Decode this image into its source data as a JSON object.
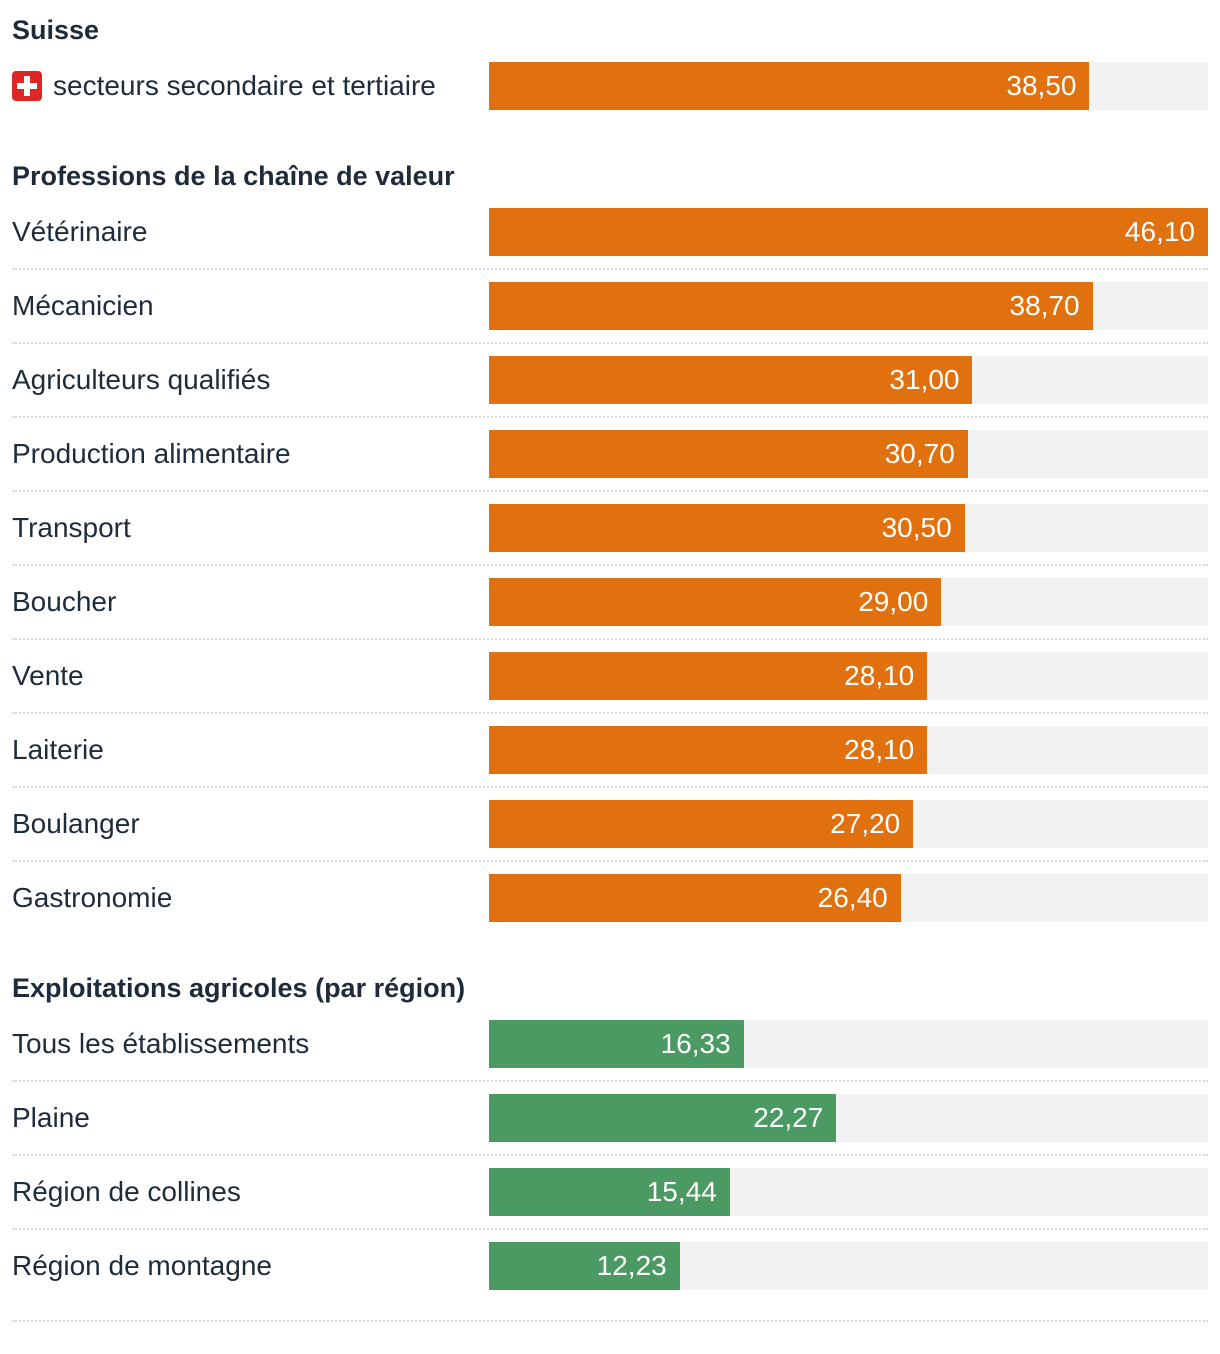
{
  "colors": {
    "orange_bar": "#e0710e",
    "green_bar": "#4c9a63",
    "bar_track": "#f2f2f2",
    "label_text": "#1e2b3a",
    "value_text": "#ffffff",
    "separator": "#d9d9d9",
    "swiss_flag_red": "#dd2727"
  },
  "chart_data": {
    "type": "bar",
    "orientation": "horizontal",
    "grid": false,
    "legend": "none",
    "value_labels": "inside-end",
    "value_format": "comma-decimal",
    "xlim": [
      0,
      46.1
    ],
    "groups": [
      {
        "title": "Suisse",
        "bar_color": "#e0710e",
        "rows": [
          {
            "label": "secteurs secondaire et tertiaire",
            "value": 38.5,
            "value_label": "38,50",
            "icon": "swiss-flag"
          }
        ]
      },
      {
        "title": "Professions de la chaîne de valeur",
        "bar_color": "#e0710e",
        "rows": [
          {
            "label": "Vétérinaire",
            "value": 46.1,
            "value_label": "46,10"
          },
          {
            "label": "Mécanicien",
            "value": 38.7,
            "value_label": "38,70"
          },
          {
            "label": "Agriculteurs qualifiés",
            "value": 31.0,
            "value_label": "31,00"
          },
          {
            "label": "Production alimentaire",
            "value": 30.7,
            "value_label": "30,70"
          },
          {
            "label": "Transport",
            "value": 30.5,
            "value_label": "30,50"
          },
          {
            "label": "Boucher",
            "value": 29.0,
            "value_label": "29,00"
          },
          {
            "label": "Vente",
            "value": 28.1,
            "value_label": "28,10"
          },
          {
            "label": "Laiterie",
            "value": 28.1,
            "value_label": "28,10"
          },
          {
            "label": "Boulanger",
            "value": 27.2,
            "value_label": "27,20"
          },
          {
            "label": "Gastronomie",
            "value": 26.4,
            "value_label": "26,40"
          }
        ]
      },
      {
        "title": "Exploitations agricoles (par région)",
        "bar_color": "#4c9a63",
        "rows": [
          {
            "label": "Tous les établissements",
            "value": 16.33,
            "value_label": "16,33"
          },
          {
            "label": "Plaine",
            "value": 22.27,
            "value_label": "22,27"
          },
          {
            "label": "Région de collines",
            "value": 15.44,
            "value_label": "15,44"
          },
          {
            "label": "Région de montagne",
            "value": 12.23,
            "value_label": "12,23"
          }
        ]
      }
    ]
  }
}
